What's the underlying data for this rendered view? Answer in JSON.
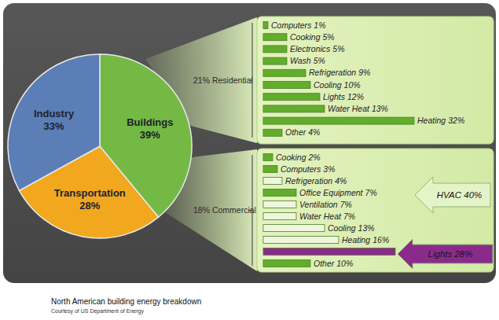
{
  "chart_data": [
    {
      "type": "pie",
      "categories": [
        "Buildings",
        "Transportation",
        "Industry"
      ],
      "values": [
        39,
        28,
        33
      ],
      "value_labels": [
        "39%",
        "28%",
        "33%"
      ],
      "colors": [
        "#74b944",
        "#f1a81f",
        "#5b7eb6"
      ],
      "data_labels": true
    },
    {
      "type": "bar",
      "orientation": "horizontal",
      "title": "21% Residential",
      "categories": [
        "Computers",
        "Cooking",
        "Electronics",
        "Wash",
        "Refrigeration",
        "Cooling",
        "Lights",
        "Water Heat",
        "Heating",
        "Other"
      ],
      "values": [
        1,
        5,
        5,
        5,
        9,
        10,
        12,
        13,
        32,
        4
      ],
      "value_labels": [
        "1%",
        "5%",
        "5%",
        "5%",
        "9%",
        "10%",
        "12%",
        "13%",
        "32%",
        "4%"
      ],
      "color": "#62ad2c",
      "data_labels": true,
      "tick_labels": false
    },
    {
      "type": "bar",
      "orientation": "horizontal",
      "title": "18% Commercial",
      "categories": [
        "Cooking",
        "Computers",
        "Refrigeration",
        "Office Equipment",
        "Ventilation",
        "Water Heat",
        "Cooling",
        "Heating",
        null,
        "Other"
      ],
      "values": [
        2,
        3,
        4,
        7,
        7,
        7,
        13,
        16,
        28,
        10
      ],
      "value_labels": [
        "2%",
        "3%",
        "4%",
        "7%",
        "7%",
        "7%",
        "13%",
        "16%",
        null,
        "10%"
      ],
      "colors": [
        "#62ad2c",
        "#62ad2c",
        "#eef7dd",
        "#62ad2c",
        "#eef7dd",
        "#eef7dd",
        "#eef7dd",
        "#eef7dd",
        "#8a2b8c",
        "#62ad2c"
      ],
      "data_labels": true,
      "tick_labels": false,
      "annotations": [
        {
          "text": "HVAC 40%",
          "color": "#e5f4c8"
        },
        {
          "text": "Lights 28%",
          "color": "#8a2b8c"
        }
      ]
    }
  ],
  "caption": {
    "title": "North American building energy breakdown",
    "note": "Courtesy of US Department of Energy"
  }
}
